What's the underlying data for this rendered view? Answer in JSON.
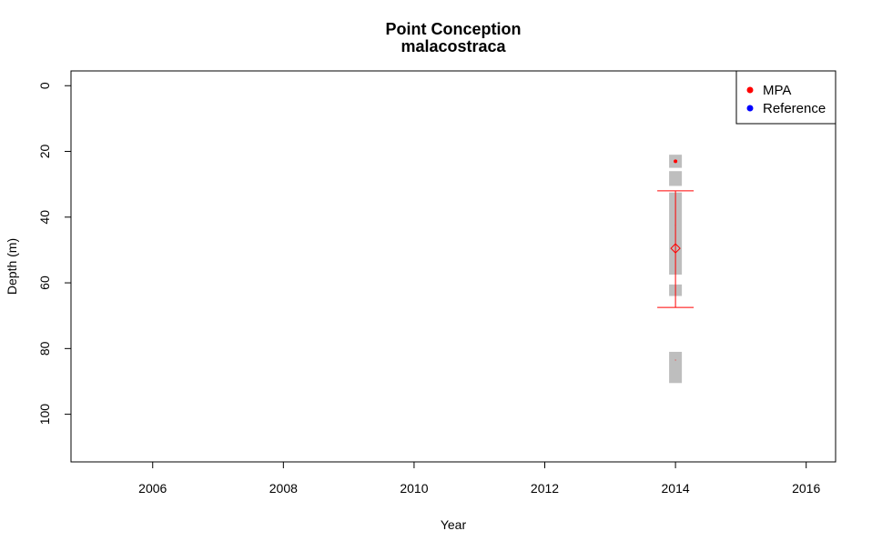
{
  "chart_data": {
    "type": "scatter",
    "title": "Point Conception",
    "subtitle": "malacostraca",
    "xlabel": "Year",
    "ylabel": "Depth (m)",
    "xlim": [
      2004.75,
      2016.45
    ],
    "ylim": [
      -4.5,
      114.5
    ],
    "y_reversed": true,
    "x_ticks": [
      2006,
      2008,
      2010,
      2012,
      2014,
      2016
    ],
    "y_ticks": [
      0,
      20,
      40,
      60,
      80,
      100
    ],
    "legend": {
      "position": "top-right",
      "entries": [
        {
          "label": "MPA",
          "color": "#ff0000"
        },
        {
          "label": "Reference",
          "color": "#0000ff"
        }
      ]
    },
    "depth_bands": [
      {
        "x": 2014,
        "y_from": 21,
        "y_to": 25
      },
      {
        "x": 2014,
        "y_from": 26,
        "y_to": 30.5
      },
      {
        "x": 2014,
        "y_from": 32.5,
        "y_to": 57.5
      },
      {
        "x": 2014,
        "y_from": 60.5,
        "y_to": 64
      },
      {
        "x": 2014,
        "y_from": 81,
        "y_to": 90.5
      }
    ],
    "points": [
      {
        "x": 2014,
        "y": 23,
        "size": 2
      },
      {
        "x": 2014,
        "y": 42.5,
        "size": 0.5
      },
      {
        "x": 2014,
        "y": 83.5,
        "size": 0.5
      }
    ],
    "summary": [
      {
        "x": 2014,
        "mean": 49.5,
        "lower": 32,
        "upper": 67.5,
        "group": "MPA"
      }
    ],
    "colors": {
      "mpa": "#ff0000",
      "reference": "#0000ff",
      "band": "#bebebe"
    }
  }
}
